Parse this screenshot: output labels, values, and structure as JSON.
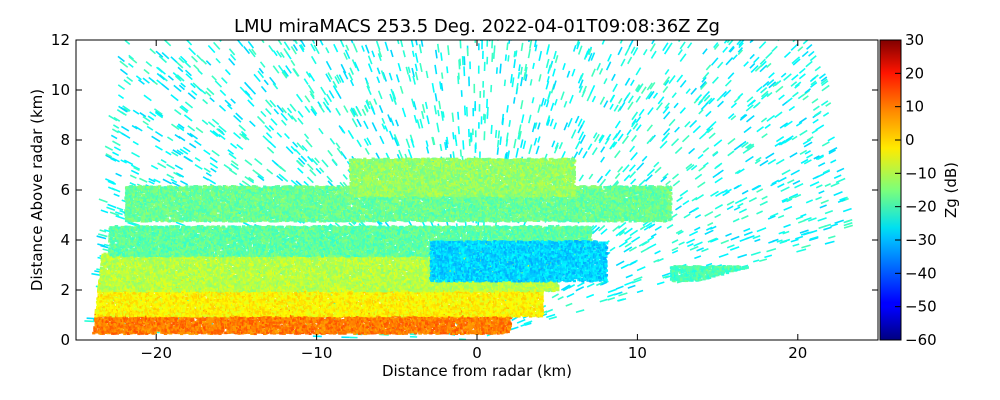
{
  "chart_data": {
    "type": "heatmap",
    "title": "LMU miraMACS 253.5 Deg. 2022-04-01T09:08:36Z  Zg",
    "xlabel": "Distance from radar (km)",
    "ylabel": "Distance Above radar  (km)",
    "xlim": [
      -25,
      25
    ],
    "ylim": [
      0,
      12
    ],
    "x_ticks": [
      -20,
      -10,
      0,
      10,
      20
    ],
    "x_tick_labels": [
      "−20",
      "−10",
      "0",
      "10",
      "20"
    ],
    "y_ticks": [
      0,
      2,
      4,
      6,
      8,
      10,
      12
    ],
    "y_tick_labels": [
      "0",
      "2",
      "4",
      "6",
      "8",
      "10",
      "12"
    ],
    "colorbar": {
      "label": "Zg (dB)",
      "range": [
        -60,
        30
      ],
      "colormap": "jet",
      "ticks": [
        30,
        20,
        10,
        0,
        -10,
        -20,
        -30,
        -40,
        -50,
        -60
      ],
      "tick_labels": [
        "30",
        "20",
        "10",
        "0",
        "−10",
        "−20",
        "−30",
        "−40",
        "−50",
        "−60"
      ]
    },
    "scan": {
      "radar_position_km": [
        0,
        0
      ],
      "left_edge_top_km": [
        -22,
        12
      ],
      "left_edge_bottom_km": [
        -24,
        0.3
      ],
      "right_edge_top_km": [
        21,
        12
      ],
      "right_edge_bottom_km": [
        23.3,
        4.1
      ]
    },
    "layers": [
      {
        "x_range": [
          -24,
          2
        ],
        "z_range": [
          0.3,
          1.3
        ],
        "value_dB": 8
      },
      {
        "x_range": [
          -24,
          4
        ],
        "z_range": [
          1.0,
          2.5
        ],
        "value_dB": -3
      },
      {
        "x_range": [
          -24,
          5
        ],
        "z_range": [
          2.0,
          3.5
        ],
        "value_dB": -10
      },
      {
        "x_range": [
          -23,
          7
        ],
        "z_range": [
          3.4,
          4.6
        ],
        "value_dB": -18
      },
      {
        "x_range": [
          -22,
          12
        ],
        "z_range": [
          4.8,
          6.2
        ],
        "value_dB": -17
      },
      {
        "x_range": [
          -8,
          6
        ],
        "z_range": [
          5.8,
          7.3
        ],
        "value_dB": -13
      },
      {
        "x_range": [
          -3,
          8
        ],
        "z_range": [
          2.4,
          4.0
        ],
        "value_dB": -30
      },
      {
        "x_range": [
          12,
          17
        ],
        "z_range": [
          2.4,
          3.0
        ],
        "value_dB": -20
      }
    ],
    "background_noise_dB": -25,
    "grid": false
  },
  "colors": {
    "axis": "#000000",
    "background": "#ffffff"
  }
}
